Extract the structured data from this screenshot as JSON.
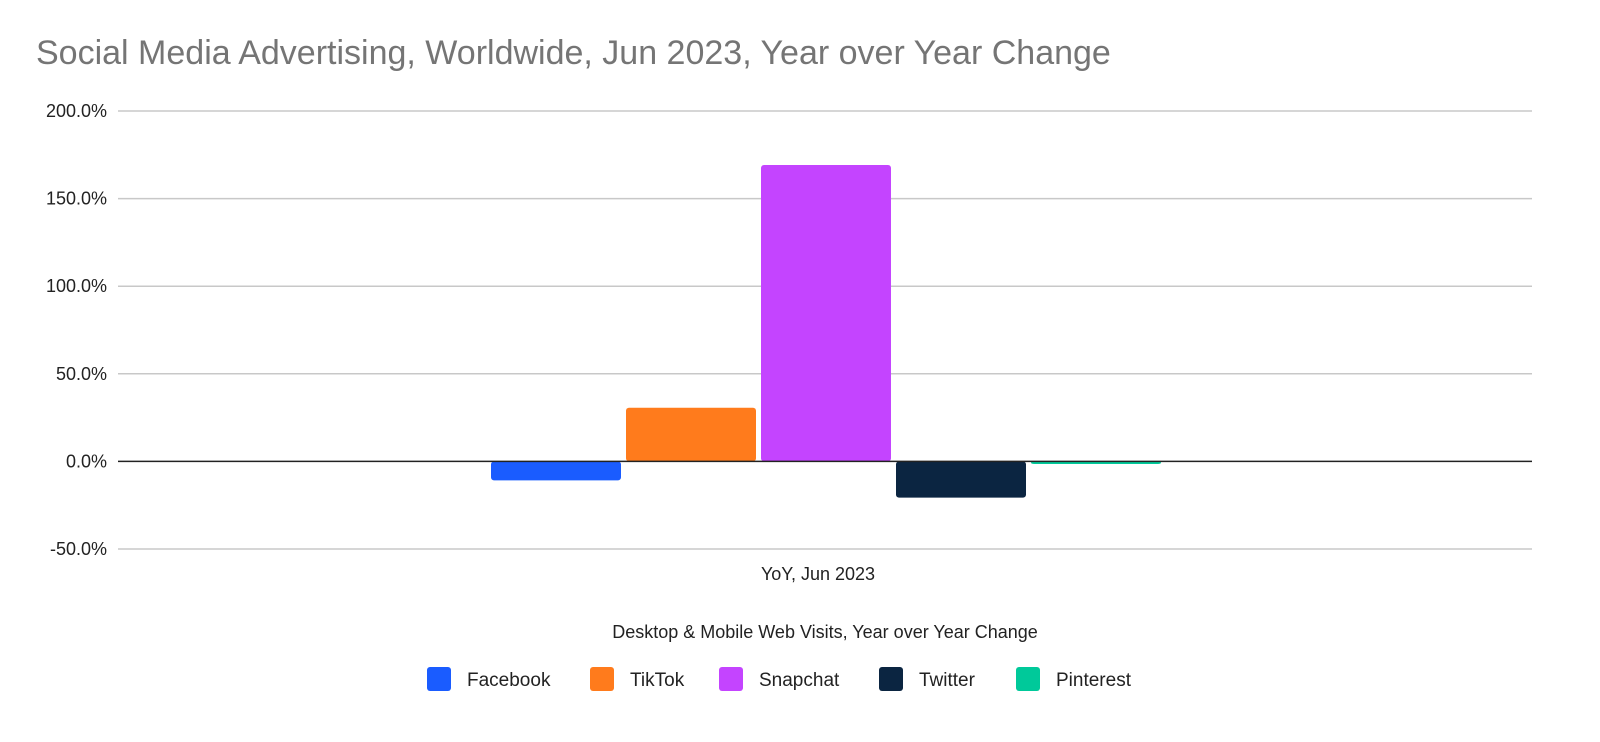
{
  "chart_data": {
    "type": "bar",
    "title": "Social Media Advertising, Worldwide, Jun 2023, Year over Year Change",
    "xlabel": "Desktop & Mobile Web Visits, Year over Year Change",
    "ylabel": "",
    "categories": [
      "YoY, Jun 2023"
    ],
    "series": [
      {
        "name": "Facebook",
        "values": [
          -10.8
        ],
        "color": "#1a5cff"
      },
      {
        "name": "TikTok",
        "values": [
          30.6
        ],
        "color": "#ff7b1c"
      },
      {
        "name": "Snapchat",
        "values": [
          169.2
        ],
        "color": "#c444ff"
      },
      {
        "name": "Twitter",
        "values": [
          -20.7
        ],
        "color": "#0b2541"
      },
      {
        "name": "Pinterest",
        "values": [
          -1.5
        ],
        "color": "#00c99a"
      }
    ],
    "yticks": [
      "200.0%",
      "150.0%",
      "100.0%",
      "50.0%",
      "0.0%",
      "-50.0%"
    ],
    "ylim": [
      -50,
      200
    ],
    "grid": true,
    "legend": "bottom"
  }
}
